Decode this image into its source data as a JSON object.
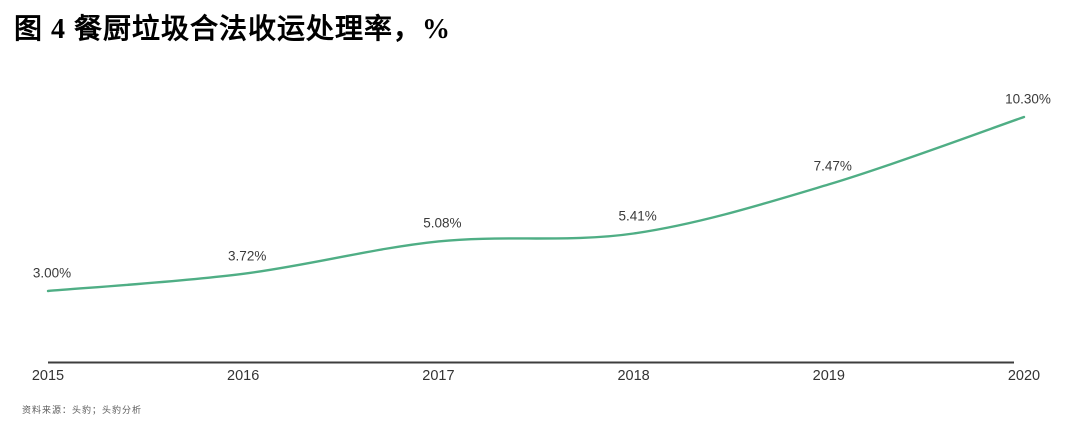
{
  "figure": {
    "title": "图 4 餐厨垃圾合法收运处理率，%",
    "source_note": "资料来源：头豹；头豹分析"
  },
  "chart_data": {
    "type": "line",
    "title": "图 4 餐厨垃圾合法收运处理率，%",
    "x": [
      "2015",
      "2016",
      "2017",
      "2018",
      "2019",
      "2020"
    ],
    "values": [
      3.0,
      3.72,
      5.08,
      5.41,
      7.47,
      10.3
    ],
    "point_labels": [
      "3.00%",
      "3.72%",
      "5.08%",
      "5.41%",
      "7.47%",
      "10.30%"
    ],
    "xlabel": "",
    "ylabel": "",
    "ylim": [
      0,
      11.6
    ],
    "grid": false,
    "legend": "none",
    "line_color": "#4fae85",
    "axis_color": "#3d3d3d",
    "label_color": "#3a3a3a"
  }
}
